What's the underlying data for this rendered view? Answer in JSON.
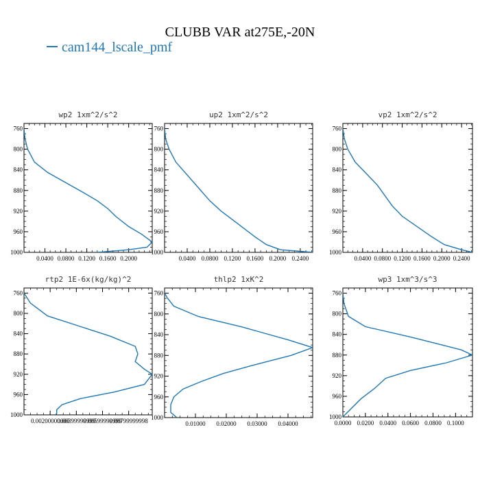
{
  "figure": {
    "title": "CLUBB VAR at275E,-20N",
    "legend_label": "cam144_lscale_pmf",
    "series_color": "#1f77b4"
  },
  "chart_data": [
    {
      "type": "line",
      "title": "wp2   1xm^2/s^2",
      "xlim": [
        0,
        0.245
      ],
      "ylim": [
        1000,
        750
      ],
      "xticks": [
        0.04,
        0.08,
        0.12,
        0.16,
        0.2
      ],
      "xtick_labels": [
        "0.0400",
        "0.0800",
        "0.1200",
        "0.1600",
        "0.2000"
      ],
      "yticks": [
        760,
        800,
        840,
        880,
        920,
        960,
        1000
      ],
      "ytick_labels": [
        "760",
        "800",
        "840",
        "880",
        "920",
        "960",
        "1000"
      ],
      "series": [
        {
          "x": [
            0.0,
            0.002,
            0.007,
            0.02,
            0.045,
            0.08,
            0.115,
            0.14,
            0.16,
            0.175,
            0.2,
            0.225,
            0.245,
            0.235,
            0.2,
            0.14
          ],
          "y": [
            760,
            780,
            800,
            825,
            845,
            865,
            885,
            900,
            915,
            930,
            950,
            965,
            980,
            990,
            995,
            1000
          ]
        }
      ]
    },
    {
      "type": "line",
      "title": "up2   1xm^2/s^2",
      "xlim": [
        0,
        0.262
      ],
      "ylim": [
        1000,
        750
      ],
      "xticks": [
        0.04,
        0.08,
        0.12,
        0.16,
        0.2,
        0.24
      ],
      "xtick_labels": [
        "0.0400",
        "0.0800",
        "0.1200",
        "0.1600",
        "0.2000",
        "0.2400"
      ],
      "yticks": [
        760,
        800,
        840,
        880,
        920,
        960,
        1000
      ],
      "ytick_labels": [
        "760",
        "800",
        "840",
        "880",
        "920",
        "960",
        "1000"
      ],
      "series": [
        {
          "x": [
            0.0,
            0.002,
            0.008,
            0.02,
            0.04,
            0.06,
            0.08,
            0.1,
            0.13,
            0.16,
            0.18,
            0.205,
            0.24,
            0.262
          ],
          "y": [
            760,
            780,
            800,
            825,
            850,
            875,
            900,
            920,
            945,
            970,
            985,
            995,
            998,
            1000
          ]
        }
      ]
    },
    {
      "type": "line",
      "title": "vp2   1xm^2/s^2",
      "xlim": [
        0,
        0.262
      ],
      "ylim": [
        1000,
        750
      ],
      "xticks": [
        0.04,
        0.08,
        0.12,
        0.16,
        0.2,
        0.24
      ],
      "xtick_labels": [
        "0.0400",
        "0.0800",
        "0.1200",
        "0.1600",
        "0.2000",
        "0.2400"
      ],
      "yticks": [
        760,
        800,
        840,
        880,
        920,
        960,
        1000
      ],
      "ytick_labels": [
        "760",
        "800",
        "840",
        "880",
        "920",
        "960",
        "1000"
      ],
      "series": [
        {
          "x": [
            0.0,
            0.003,
            0.01,
            0.025,
            0.045,
            0.07,
            0.085,
            0.1,
            0.12,
            0.15,
            0.18,
            0.205,
            0.24,
            0.262
          ],
          "y": [
            760,
            780,
            800,
            825,
            845,
            870,
            890,
            910,
            930,
            950,
            970,
            985,
            995,
            1000
          ]
        }
      ]
    },
    {
      "type": "line",
      "title": "rtp2   1E-6x(kg/kg)^2",
      "xlim": [
        0,
        0.0098
      ],
      "ylim": [
        1000,
        750
      ],
      "xticks": [
        0.002,
        0.004,
        0.006,
        0.008
      ],
      "xtick_labels": [
        "0.00200000000",
        "0.00399999999",
        "0.00599999999",
        "0.00799999998"
      ],
      "yticks": [
        760,
        800,
        840,
        880,
        920,
        960,
        1000
      ],
      "ytick_labels": [
        "760",
        "800",
        "840",
        "880",
        "920",
        "960",
        "1000"
      ],
      "series": [
        {
          "x": [
            0.0,
            0.0005,
            0.0018,
            0.0042,
            0.0066,
            0.0085,
            0.0087,
            0.0085,
            0.0092,
            0.0098,
            0.0092,
            0.0069,
            0.0043,
            0.0029,
            0.0025,
            0.0025,
            0.0024
          ],
          "y": [
            760,
            780,
            805,
            825,
            845,
            865,
            880,
            895,
            910,
            920,
            940,
            955,
            968,
            980,
            990,
            997,
            1000
          ]
        }
      ]
    },
    {
      "type": "line",
      "title": "thlp2   1xK^2",
      "xlim": [
        0,
        0.048
      ],
      "ylim": [
        1000,
        750
      ],
      "xticks": [
        0.01,
        0.02,
        0.03,
        0.04
      ],
      "xtick_labels": [
        "0.01000",
        "0.02000",
        "0.03000",
        "0.04000"
      ],
      "yticks": [
        760,
        800,
        840,
        880,
        920,
        960,
        1000
      ],
      "ytick_labels": [
        "760",
        "800",
        "840",
        "880",
        "920",
        "960",
        "1000"
      ],
      "series": [
        {
          "x": [
            0.0,
            0.001,
            0.003,
            0.011,
            0.025,
            0.04,
            0.048,
            0.041,
            0.028,
            0.019,
            0.012,
            0.006,
            0.003,
            0.002,
            0.002,
            0.004
          ],
          "y": [
            760,
            770,
            785,
            805,
            825,
            850,
            865,
            880,
            900,
            915,
            930,
            945,
            960,
            975,
            990,
            1000
          ]
        }
      ]
    },
    {
      "type": "line",
      "title": "wp3   1xm^3/s^3",
      "xlim": [
        0,
        0.115
      ],
      "ylim": [
        1000,
        750
      ],
      "xticks": [
        0.0,
        0.02,
        0.04,
        0.06,
        0.08,
        0.1
      ],
      "xtick_labels": [
        "0.0000",
        "0.0200",
        "0.0400",
        "0.0600",
        "0.0800",
        "0.1000"
      ],
      "yticks": [
        760,
        800,
        840,
        880,
        920,
        960,
        1000
      ],
      "ytick_labels": [
        "760",
        "800",
        "840",
        "880",
        "920",
        "960",
        "1000"
      ],
      "series": [
        {
          "x": [
            0.0,
            0.001,
            0.005,
            0.02,
            0.06,
            0.105,
            0.115,
            0.092,
            0.06,
            0.038,
            0.028,
            0.016,
            0.0
          ],
          "y": [
            760,
            780,
            805,
            825,
            845,
            870,
            880,
            895,
            910,
            925,
            945,
            965,
            1000
          ]
        }
      ]
    }
  ]
}
